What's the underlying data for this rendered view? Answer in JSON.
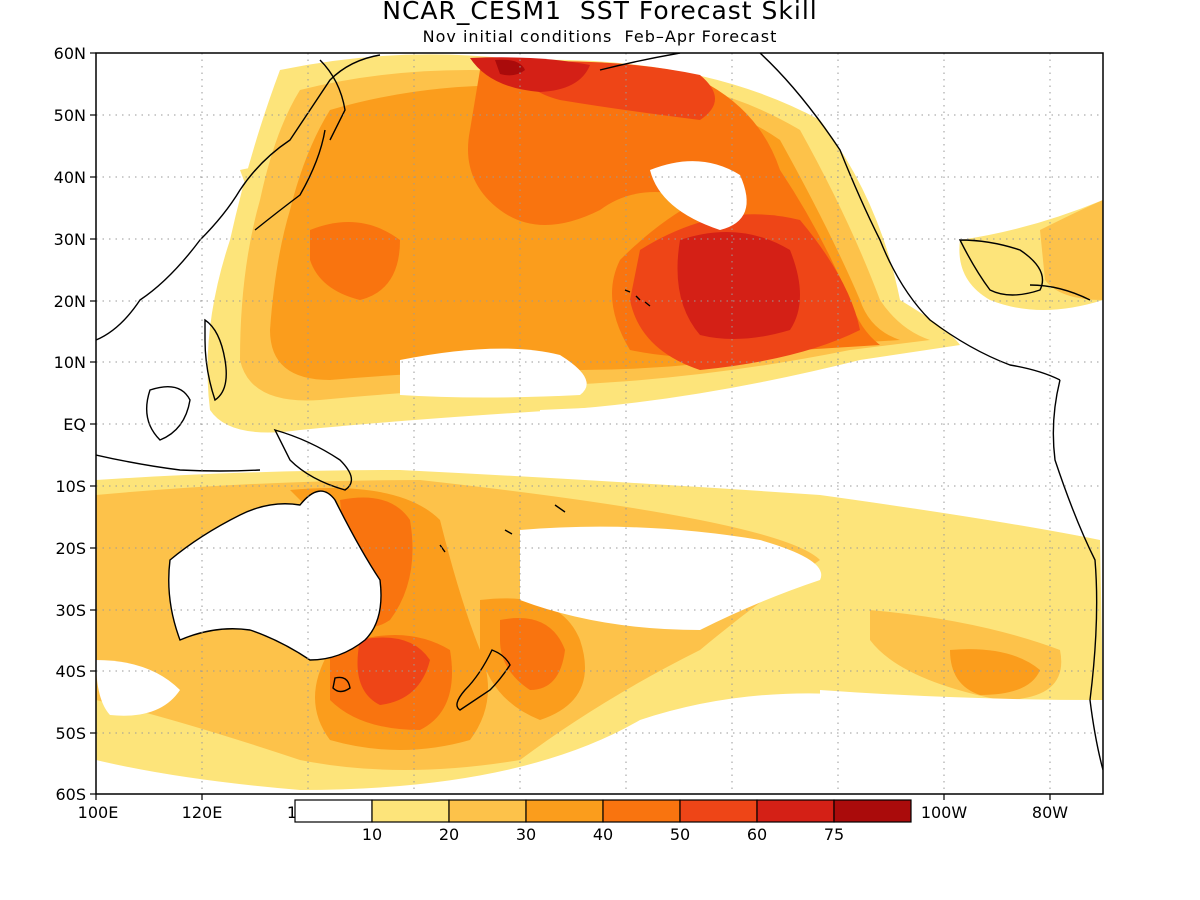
{
  "title": "NCAR_CESM1  SST Forecast Skill",
  "subtitle": "Nov initial conditions  Feb–Apr Forecast",
  "axes": {
    "lat_labels": [
      "60N",
      "50N",
      "40N",
      "30N",
      "20N",
      "10N",
      "EQ",
      "10S",
      "20S",
      "30S",
      "40S",
      "50S",
      "60S"
    ],
    "lon_labels": [
      "100E",
      "120E",
      "1",
      "100W",
      "80W"
    ]
  },
  "colorbar": {
    "labels": [
      "10",
      "20",
      "30",
      "40",
      "50",
      "60",
      "75"
    ],
    "colors": [
      "#ffffff",
      "#fde47a",
      "#fdc24a",
      "#fb9d1c",
      "#f9740f",
      "#ee4517",
      "#d42016",
      "#aa0b0b"
    ]
  },
  "map": {
    "lon_range": [
      100,
      290
    ],
    "lat_range": [
      -60,
      60
    ],
    "grid": "dotted",
    "projection": "cylindrical"
  }
}
